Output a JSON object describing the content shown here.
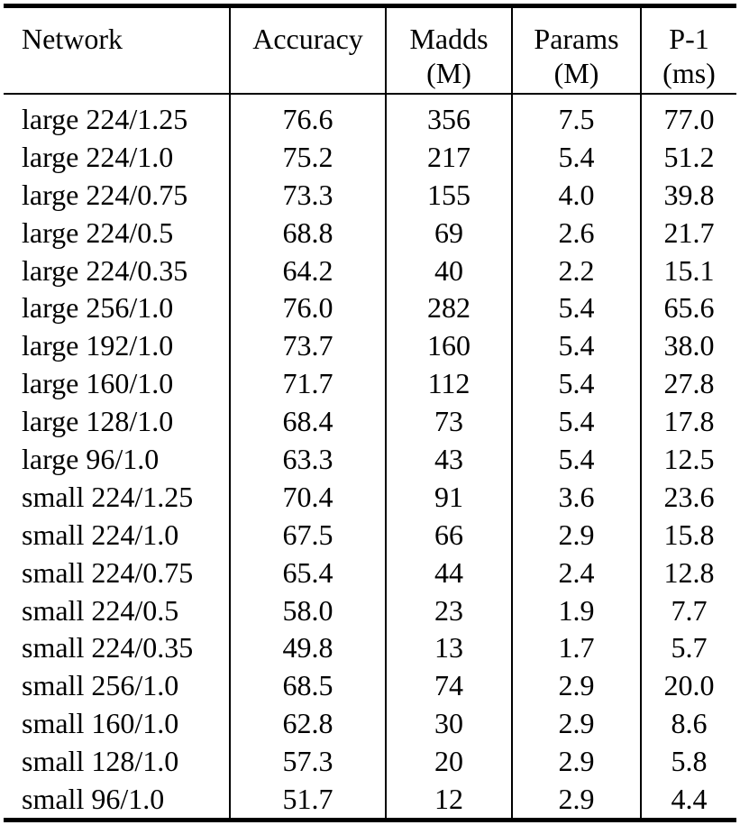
{
  "table": {
    "headers": [
      {
        "lines": [
          "Network"
        ]
      },
      {
        "lines": [
          "Accuracy"
        ]
      },
      {
        "lines": [
          "Madds",
          "(M)"
        ]
      },
      {
        "lines": [
          "Params",
          "(M)"
        ]
      },
      {
        "lines": [
          "P-1",
          "(ms)"
        ]
      }
    ],
    "rows": [
      [
        "large 224/1.25",
        "76.6",
        "356",
        "7.5",
        "77.0"
      ],
      [
        "large 224/1.0",
        "75.2",
        "217",
        "5.4",
        "51.2"
      ],
      [
        "large 224/0.75",
        "73.3",
        "155",
        "4.0",
        "39.8"
      ],
      [
        "large 224/0.5",
        "68.8",
        "69",
        "2.6",
        "21.7"
      ],
      [
        "large 224/0.35",
        "64.2",
        "40",
        "2.2",
        "15.1"
      ],
      [
        "large 256/1.0",
        "76.0",
        "282",
        "5.4",
        "65.6"
      ],
      [
        "large 192/1.0",
        "73.7",
        "160",
        "5.4",
        "38.0"
      ],
      [
        "large 160/1.0",
        "71.7",
        "112",
        "5.4",
        "27.8"
      ],
      [
        "large 128/1.0",
        "68.4",
        "73",
        "5.4",
        "17.8"
      ],
      [
        "large 96/1.0",
        "63.3",
        "43",
        "5.4",
        "12.5"
      ],
      [
        "small 224/1.25",
        "70.4",
        "91",
        "3.6",
        "23.6"
      ],
      [
        "small 224/1.0",
        "67.5",
        "66",
        "2.9",
        "15.8"
      ],
      [
        "small 224/0.75",
        "65.4",
        "44",
        "2.4",
        "12.8"
      ],
      [
        "small 224/0.5",
        "58.0",
        "23",
        "1.9",
        "7.7"
      ],
      [
        "small 224/0.35",
        "49.8",
        "13",
        "1.7",
        "5.7"
      ],
      [
        "small 256/1.0",
        "68.5",
        "74",
        "2.9",
        "20.0"
      ],
      [
        "small 160/1.0",
        "62.8",
        "30",
        "2.9",
        "8.6"
      ],
      [
        "small 128/1.0",
        "57.3",
        "20",
        "2.9",
        "5.8"
      ],
      [
        "small 96/1.0",
        "51.7",
        "12",
        "2.9",
        "4.4"
      ]
    ]
  }
}
